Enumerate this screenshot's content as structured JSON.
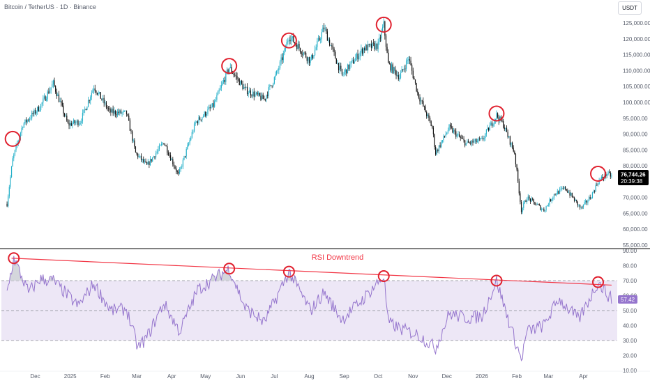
{
  "header": {
    "symbol_title": "Bitcoin / TetherUS · 1D · Binance",
    "currency_button": "USDT"
  },
  "colors": {
    "up_candle": "#26b0c9",
    "down_candle": "#111111",
    "rsi_line": "#9575cd",
    "rsi_band_fill": "#ede7f6",
    "trendline": "#f23645",
    "circle": "#e0202e",
    "price_label_bg": "#000000"
  },
  "chart_data": [
    {
      "type": "candlestick",
      "title": "Bitcoin / TetherUS · 1D · Binance",
      "x_tick_labels": [
        "Dec",
        "2025",
        "Feb",
        "Mar",
        "Apr",
        "May",
        "Jun",
        "Jul",
        "Aug",
        "Sep",
        "Oct",
        "Nov",
        "Dec",
        "2026",
        "Feb",
        "Mar",
        "Apr"
      ],
      "y_tick_labels": [
        "55,000.00",
        "60,000.00",
        "65,000.00",
        "70,000.00",
        "75,000.00",
        "80,000.00",
        "85,000.00",
        "90,000.00",
        "95,000.00",
        "100,000.00",
        "105,000.00",
        "110,000.00",
        "115,000.00",
        "120,000.00",
        "125,000.00"
      ],
      "ylim": [
        55000,
        127000
      ],
      "y_scale": "linear",
      "current_price": "76,744.26",
      "countdown": "20:39:38",
      "close_path": [
        {
          "date": "2024-11-06",
          "close": 68000
        },
        {
          "date": "2024-11-11",
          "close": 82000
        },
        {
          "date": "2024-11-20",
          "close": 93000
        },
        {
          "date": "2024-12-05",
          "close": 98500
        },
        {
          "date": "2024-12-17",
          "close": 106000
        },
        {
          "date": "2024-12-30",
          "close": 93000
        },
        {
          "date": "2025-01-10",
          "close": 94000
        },
        {
          "date": "2025-01-22",
          "close": 105000
        },
        {
          "date": "2025-02-05",
          "close": 97000
        },
        {
          "date": "2025-02-20",
          "close": 96500
        },
        {
          "date": "2025-02-28",
          "close": 84000
        },
        {
          "date": "2025-03-10",
          "close": 80000
        },
        {
          "date": "2025-03-25",
          "close": 87500
        },
        {
          "date": "2025-04-07",
          "close": 77000
        },
        {
          "date": "2025-04-22",
          "close": 93500
        },
        {
          "date": "2025-05-08",
          "close": 99000
        },
        {
          "date": "2025-05-22",
          "close": 111000
        },
        {
          "date": "2025-06-05",
          "close": 104000
        },
        {
          "date": "2025-06-22",
          "close": 101000
        },
        {
          "date": "2025-07-03",
          "close": 109000
        },
        {
          "date": "2025-07-10",
          "close": 116000
        },
        {
          "date": "2025-07-14",
          "close": 121000
        },
        {
          "date": "2025-08-02",
          "close": 113000
        },
        {
          "date": "2025-08-14",
          "close": 123500
        },
        {
          "date": "2025-08-30",
          "close": 108500
        },
        {
          "date": "2025-09-18",
          "close": 117000
        },
        {
          "date": "2025-10-01",
          "close": 118000
        },
        {
          "date": "2025-10-06",
          "close": 124500
        },
        {
          "date": "2025-10-10",
          "close": 112000
        },
        {
          "date": "2025-10-20",
          "close": 108000
        },
        {
          "date": "2025-10-28",
          "close": 114000
        },
        {
          "date": "2025-11-05",
          "close": 103000
        },
        {
          "date": "2025-11-18",
          "close": 92000
        },
        {
          "date": "2025-11-21",
          "close": 84000
        },
        {
          "date": "2025-12-03",
          "close": 92000
        },
        {
          "date": "2025-12-18",
          "close": 87000
        },
        {
          "date": "2026-01-01",
          "close": 88000
        },
        {
          "date": "2026-01-14",
          "close": 96000
        },
        {
          "date": "2026-01-20",
          "close": 93000
        },
        {
          "date": "2026-01-30",
          "close": 84000
        },
        {
          "date": "2026-02-05",
          "close": 66000
        },
        {
          "date": "2026-02-10",
          "close": 70000
        },
        {
          "date": "2026-02-25",
          "close": 66000
        },
        {
          "date": "2026-03-06",
          "close": 71000
        },
        {
          "date": "2026-03-16",
          "close": 73000
        },
        {
          "date": "2026-03-30",
          "close": 66500
        },
        {
          "date": "2026-04-08",
          "close": 70500
        },
        {
          "date": "2026-04-14",
          "close": 75000
        },
        {
          "date": "2026-04-22",
          "close": 77500
        },
        {
          "date": "2026-04-26",
          "close": 76744.26
        }
      ],
      "highlighted_highs": [
        {
          "date": "2024-11-11",
          "value": 88500
        },
        {
          "date": "2025-05-22",
          "value": 111500
        },
        {
          "date": "2025-07-14",
          "value": 119500
        },
        {
          "date": "2025-10-06",
          "value": 124500
        },
        {
          "date": "2026-01-14",
          "value": 96500
        },
        {
          "date": "2026-04-14",
          "value": 77500
        }
      ]
    },
    {
      "type": "line",
      "annotation": "RSI Downtrend",
      "y_tick_labels": [
        "10.00",
        "20.00",
        "30.00",
        "40.00",
        "50.00",
        "60.00",
        "70.00",
        "80.00",
        "90.00"
      ],
      "ylim": [
        10,
        90
      ],
      "levels": [
        70,
        50,
        30
      ],
      "current_value": "57.42",
      "points": [
        {
          "date": "2024-11-06",
          "value": 62
        },
        {
          "date": "2024-11-12",
          "value": 85
        },
        {
          "date": "2024-11-25",
          "value": 62
        },
        {
          "date": "2024-12-05",
          "value": 71
        },
        {
          "date": "2024-12-17",
          "value": 70
        },
        {
          "date": "2025-01-08",
          "value": 53
        },
        {
          "date": "2025-01-22",
          "value": 68
        },
        {
          "date": "2025-02-06",
          "value": 50
        },
        {
          "date": "2025-02-20",
          "value": 51
        },
        {
          "date": "2025-03-02",
          "value": 25
        },
        {
          "date": "2025-03-10",
          "value": 32
        },
        {
          "date": "2025-03-25",
          "value": 55
        },
        {
          "date": "2025-04-08",
          "value": 36
        },
        {
          "date": "2025-04-24",
          "value": 64
        },
        {
          "date": "2025-05-22",
          "value": 78
        },
        {
          "date": "2025-06-05",
          "value": 52
        },
        {
          "date": "2025-06-22",
          "value": 42
        },
        {
          "date": "2025-07-14",
          "value": 76
        },
        {
          "date": "2025-08-02",
          "value": 50
        },
        {
          "date": "2025-08-14",
          "value": 62
        },
        {
          "date": "2025-08-30",
          "value": 44
        },
        {
          "date": "2025-09-18",
          "value": 58
        },
        {
          "date": "2025-10-06",
          "value": 73
        },
        {
          "date": "2025-10-10",
          "value": 42
        },
        {
          "date": "2025-10-20",
          "value": 38
        },
        {
          "date": "2025-11-05",
          "value": 34
        },
        {
          "date": "2025-11-21",
          "value": 25
        },
        {
          "date": "2025-12-03",
          "value": 48
        },
        {
          "date": "2025-12-18",
          "value": 45
        },
        {
          "date": "2026-01-01",
          "value": 46
        },
        {
          "date": "2026-01-14",
          "value": 70
        },
        {
          "date": "2026-01-22",
          "value": 50
        },
        {
          "date": "2026-02-05",
          "value": 17
        },
        {
          "date": "2026-02-10",
          "value": 36
        },
        {
          "date": "2026-02-25",
          "value": 40
        },
        {
          "date": "2026-03-10",
          "value": 58
        },
        {
          "date": "2026-03-28",
          "value": 44
        },
        {
          "date": "2026-04-14",
          "value": 69
        },
        {
          "date": "2026-04-20",
          "value": 63
        },
        {
          "date": "2026-04-26",
          "value": 57.42
        }
      ],
      "trendline": [
        {
          "date": "2024-11-10",
          "value": 85
        },
        {
          "date": "2026-04-26",
          "value": 67
        }
      ],
      "highlighted_highs": [
        {
          "date": "2024-11-12",
          "value": 85
        },
        {
          "date": "2025-05-22",
          "value": 78
        },
        {
          "date": "2025-07-14",
          "value": 76
        },
        {
          "date": "2025-10-06",
          "value": 73
        },
        {
          "date": "2026-01-14",
          "value": 70
        },
        {
          "date": "2026-04-14",
          "value": 69
        }
      ]
    }
  ],
  "time_axis_dates": [
    "2024-12-01",
    "2025-01-01",
    "2025-02-01",
    "2025-03-01",
    "2025-04-01",
    "2025-05-01",
    "2025-06-01",
    "2025-07-01",
    "2025-08-01",
    "2025-09-01",
    "2025-10-01",
    "2025-11-01",
    "2025-12-01",
    "2026-01-01",
    "2026-02-01",
    "2026-03-01",
    "2026-04-01"
  ]
}
